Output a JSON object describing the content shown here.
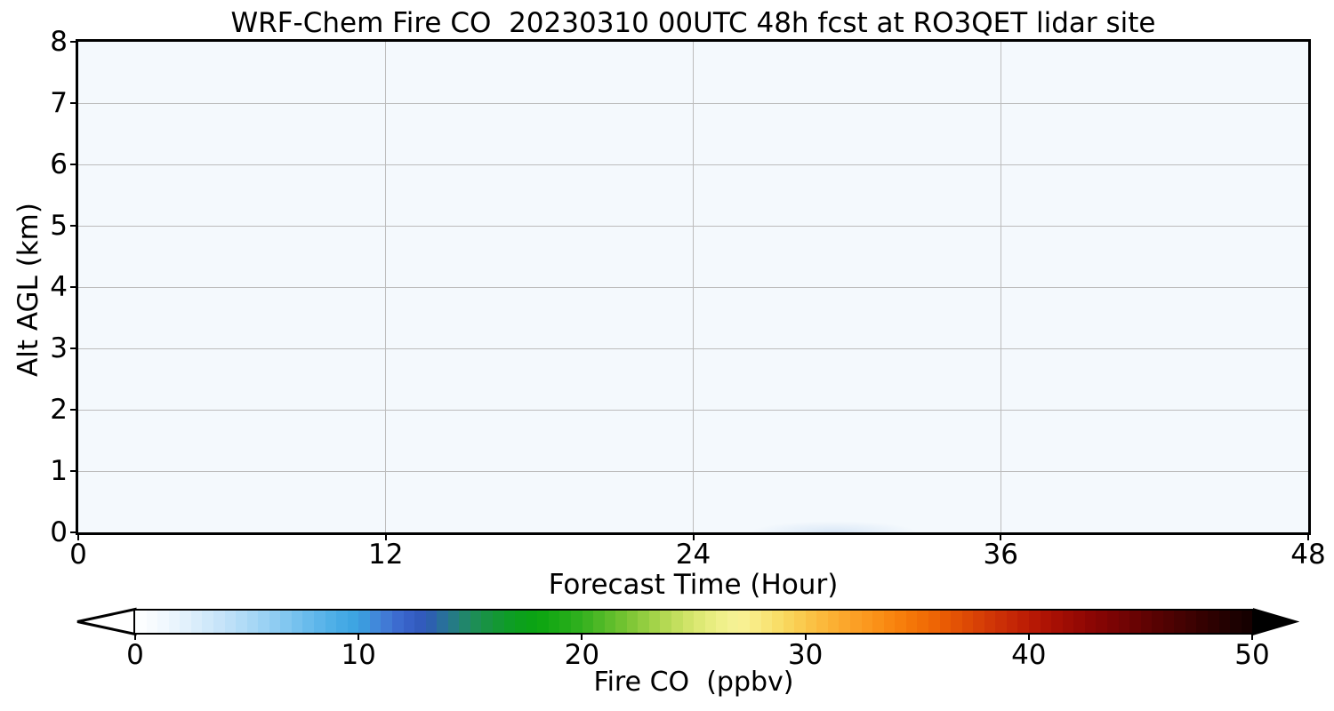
{
  "figure": {
    "background_color": "#ffffff",
    "plot_background_color": "#f4f9fd",
    "grid_color": "#bcbcbc",
    "spine_color": "#000000",
    "text_color": "#000000"
  },
  "chart_data": {
    "type": "heatmap",
    "title": "WRF-Chem Fire CO  20230310 00UTC 48h fcst at RO3QET lidar site",
    "xlabel": "Forecast Time (Hour)",
    "ylabel": "Alt AGL (km)",
    "xlim": [
      0,
      48
    ],
    "ylim": [
      0,
      8
    ],
    "x_ticks": [
      0,
      12,
      24,
      36,
      48
    ],
    "y_ticks": [
      0,
      1,
      2,
      3,
      4,
      5,
      6,
      7,
      8
    ],
    "x_gridlines": [
      12,
      24,
      36
    ],
    "y_gridlines": [
      1,
      2,
      3,
      4,
      5,
      6,
      7
    ],
    "grid": true,
    "values_summary": "Fire CO is near 0 ppbv over the entire 0-48 h / 0-8 km domain (uniform pale near-white field); a very faint plume of roughly 1 ppbv appears below about 0.3 km between forecast hours ~25 and ~34, peaking near hour 29.",
    "plume": {
      "t_start_hour": 25,
      "t_end_hour": 34,
      "peak_hour": 29,
      "max_alt_km": 0.25,
      "approx_value_ppbv": 1,
      "color": "rgba(170,200,235,0.38)"
    },
    "colorbar": {
      "label": "Fire CO  (ppbv)",
      "ticks": [
        0,
        10,
        20,
        30,
        40,
        50
      ],
      "range": [
        0,
        50
      ],
      "extend": "both",
      "n_bands": 100,
      "under_color": "#ffffff",
      "over_color": "#000000",
      "stops": [
        {
          "v": 0,
          "c": "#ffffff"
        },
        {
          "v": 1,
          "c": "#f4fafe"
        },
        {
          "v": 2,
          "c": "#e6f3fc"
        },
        {
          "v": 3,
          "c": "#d5ebfa"
        },
        {
          "v": 4,
          "c": "#c2e2f8"
        },
        {
          "v": 5,
          "c": "#addaf6"
        },
        {
          "v": 6,
          "c": "#95cff3"
        },
        {
          "v": 7,
          "c": "#7bc4ef"
        },
        {
          "v": 8,
          "c": "#62b8eb"
        },
        {
          "v": 9,
          "c": "#4aade6"
        },
        {
          "v": 10,
          "c": "#3aa2e0"
        },
        {
          "v": 11,
          "c": "#4381d8"
        },
        {
          "v": 12,
          "c": "#3a64cc"
        },
        {
          "v": 13,
          "c": "#2f58b8"
        },
        {
          "v": 14,
          "c": "#277692"
        },
        {
          "v": 15,
          "c": "#1f8b5e"
        },
        {
          "v": 16,
          "c": "#15953a"
        },
        {
          "v": 17,
          "c": "#0c9f1f"
        },
        {
          "v": 18,
          "c": "#0aa411"
        },
        {
          "v": 19,
          "c": "#1caa16"
        },
        {
          "v": 20,
          "c": "#33b01f"
        },
        {
          "v": 21,
          "c": "#55ba28"
        },
        {
          "v": 22,
          "c": "#78c433"
        },
        {
          "v": 23,
          "c": "#9bd044"
        },
        {
          "v": 24,
          "c": "#bcdc58"
        },
        {
          "v": 25,
          "c": "#d8e76e"
        },
        {
          "v": 26,
          "c": "#ecef85"
        },
        {
          "v": 27,
          "c": "#f7f298"
        },
        {
          "v": 28,
          "c": "#f9e97f"
        },
        {
          "v": 29,
          "c": "#f9da60"
        },
        {
          "v": 30,
          "c": "#fac74a"
        },
        {
          "v": 31,
          "c": "#fbb437"
        },
        {
          "v": 32,
          "c": "#fba328"
        },
        {
          "v": 33,
          "c": "#fb941a"
        },
        {
          "v": 34,
          "c": "#f8830e"
        },
        {
          "v": 35,
          "c": "#f37206"
        },
        {
          "v": 36,
          "c": "#ec6004"
        },
        {
          "v": 37,
          "c": "#e04d05"
        },
        {
          "v": 38,
          "c": "#d43b06"
        },
        {
          "v": 39,
          "c": "#c82b06"
        },
        {
          "v": 40,
          "c": "#ba1b05"
        },
        {
          "v": 41,
          "c": "#aa1004"
        },
        {
          "v": 42,
          "c": "#990a04"
        },
        {
          "v": 43,
          "c": "#880504"
        },
        {
          "v": 44,
          "c": "#760404"
        },
        {
          "v": 45,
          "c": "#640303"
        },
        {
          "v": 46,
          "c": "#530202"
        },
        {
          "v": 47,
          "c": "#420202"
        },
        {
          "v": 48,
          "c": "#310101"
        },
        {
          "v": 49,
          "c": "#200101"
        },
        {
          "v": 50,
          "c": "#120000"
        }
      ]
    }
  }
}
